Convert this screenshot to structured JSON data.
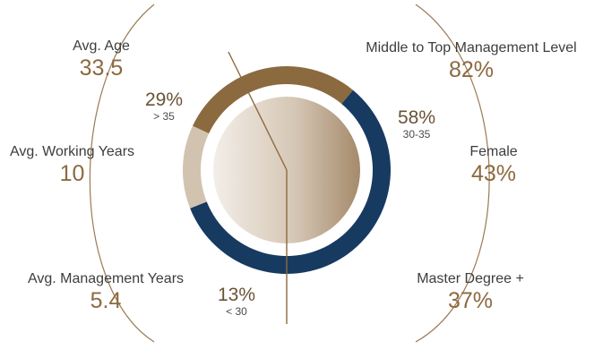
{
  "stats": {
    "age": {
      "label": "Avg. Age",
      "value": "33.5"
    },
    "working": {
      "label": "Avg. Working Years",
      "value": "10"
    },
    "management": {
      "label": "Avg. Management Years",
      "value": "5.4"
    },
    "level": {
      "label": "Middle to Top Management Level",
      "value": "82%"
    },
    "female": {
      "label": "Female",
      "value": "43%"
    },
    "master": {
      "label": "Master Degree +",
      "value": "37%"
    }
  },
  "segments": {
    "older": {
      "pct": "29%",
      "range": "> 35"
    },
    "middle": {
      "pct": "58%",
      "range": "30-35"
    },
    "young": {
      "pct": "13%",
      "range": "< 30"
    }
  },
  "colors": {
    "navy": "#173a61",
    "brown": "#8c6a3f",
    "tan": "#d2c3b1",
    "line": "#8c6a3f"
  },
  "chart_data": {
    "type": "pie",
    "categories": [
      "30-35",
      "< 30",
      "> 35"
    ],
    "values": [
      58,
      13,
      29
    ],
    "colors": [
      "#173a61",
      "#d2c3b1",
      "#8c6a3f"
    ]
  }
}
